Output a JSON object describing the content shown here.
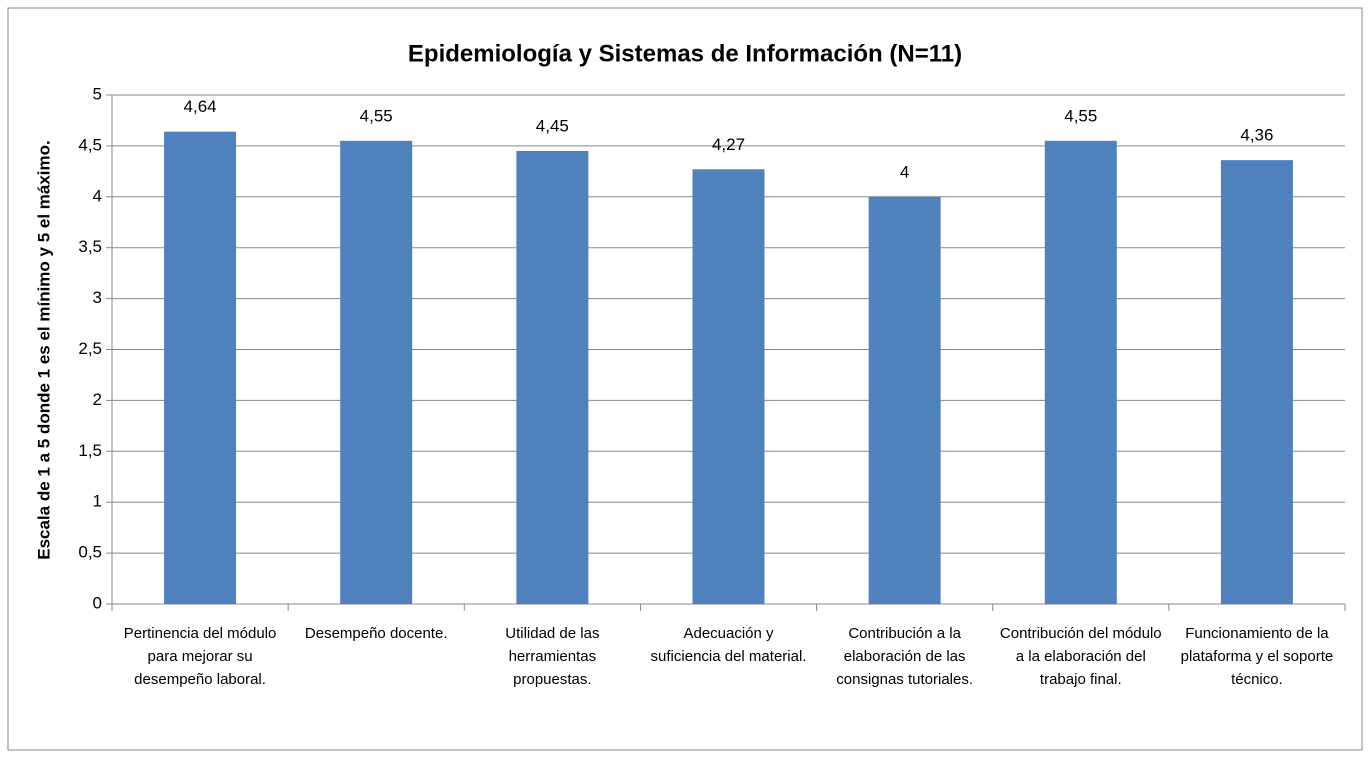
{
  "chart_data": {
    "type": "bar",
    "title": "Epidemiología y Sistemas de Información (N=11)",
    "y_label": "Escala  de  1  a 5 donde 1 es el mínimo y 5 el máximo.",
    "categories": [
      "Pertinencia del módulo para mejorar su desempeño laboral.",
      "Desempeño docente.",
      "Utilidad de las herramientas propuestas.",
      "Adecuación y suficiencia del material.",
      "Contribución a la elaboración de las consignas tutoriales.",
      "Contribución del módulo a la elaboración del trabajo final.",
      "Funcionamiento de la plataforma y el soporte técnico."
    ],
    "values": [
      4.64,
      4.55,
      4.45,
      4.27,
      4,
      4.55,
      4.36
    ],
    "value_labels": [
      "4,64",
      "4,55",
      "4,45",
      "4,27",
      "4",
      "4,55",
      "4,36"
    ],
    "color": "#4f81bd",
    "ylim": [
      0,
      5
    ],
    "yticks": [
      0,
      {
        "value": 0.5,
        "label": "0,5"
      },
      1,
      {
        "value": 1.5,
        "label": "1,5"
      },
      2,
      {
        "value": 2.5,
        "label": "2,5"
      },
      3,
      {
        "value": 3.5,
        "label": "3,5"
      },
      4,
      {
        "value": 4.5,
        "label": "4,5"
      },
      5
    ],
    "grid": true
  }
}
